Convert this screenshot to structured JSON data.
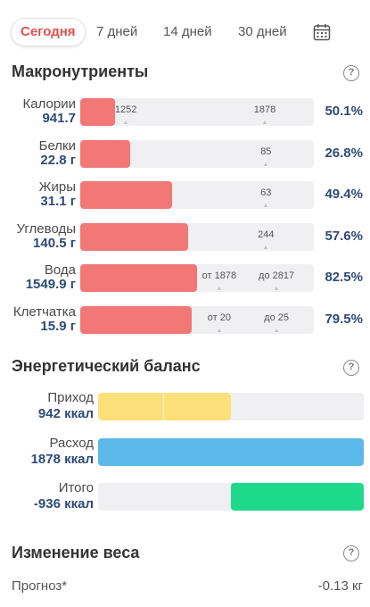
{
  "tabs": [
    {
      "label": "Сегодня",
      "active": true
    },
    {
      "label": "7 дней",
      "active": false
    },
    {
      "label": "14 дней",
      "active": false
    },
    {
      "label": "30 дней",
      "active": false
    }
  ],
  "calendar_icon": "calendar-icon",
  "macros": {
    "title": "Макронутриенты",
    "help_icon": "?",
    "rows": [
      {
        "name": "Калории",
        "value": "941.7",
        "fraction": 0.147,
        "markers": [
          {
            "label": "1252",
            "pos": 0.195
          },
          {
            "label": "1878",
            "pos": 0.79
          }
        ],
        "percent": "50.1%"
      },
      {
        "name": "Белки",
        "value": "22.8 г",
        "fraction": 0.214,
        "markers": [
          {
            "label": "85",
            "pos": 0.795
          }
        ],
        "percent": "26.8%"
      },
      {
        "name": "Жиры",
        "value": "31.1 г",
        "fraction": 0.393,
        "markers": [
          {
            "label": "63",
            "pos": 0.795
          }
        ],
        "percent": "49.4%"
      },
      {
        "name": "Углеводы",
        "value": "140.5 г",
        "fraction": 0.462,
        "markers": [
          {
            "label": "244",
            "pos": 0.795
          }
        ],
        "percent": "57.6%"
      },
      {
        "name": "Вода",
        "value": "1549.9 г",
        "fraction": 0.5,
        "markers": [
          {
            "label": "от 1878",
            "pos": 0.595
          },
          {
            "label": "до 2817",
            "pos": 0.84
          }
        ],
        "percent": "82.5%"
      },
      {
        "name": "Клетчатка",
        "value": "15.9 г",
        "fraction": 0.477,
        "markers": [
          {
            "label": "от 20",
            "pos": 0.595
          },
          {
            "label": "до 25",
            "pos": 0.84
          }
        ],
        "percent": "79.5%"
      }
    ],
    "bar_color": "#f27878"
  },
  "energy": {
    "title": "Энергетический баланс",
    "help_icon": "?",
    "rows": [
      {
        "name": "Приход",
        "value": "942 ккал",
        "color": "#fde07a",
        "start": 0.0,
        "fraction": 0.5,
        "divider": 0.245
      },
      {
        "name": "Расход",
        "value": "1878 ккал",
        "color": "#5bb9ea",
        "start": 0.0,
        "fraction": 1.0
      },
      {
        "name": "Итого",
        "value": "-936 ккал",
        "color": "#1fd98a",
        "start": 0.5,
        "fraction": 0.5
      }
    ]
  },
  "weight": {
    "title": "Изменение веса",
    "help_icon": "?",
    "forecast_label": "Прогноз*",
    "forecast_value": "-0.13 кг"
  }
}
